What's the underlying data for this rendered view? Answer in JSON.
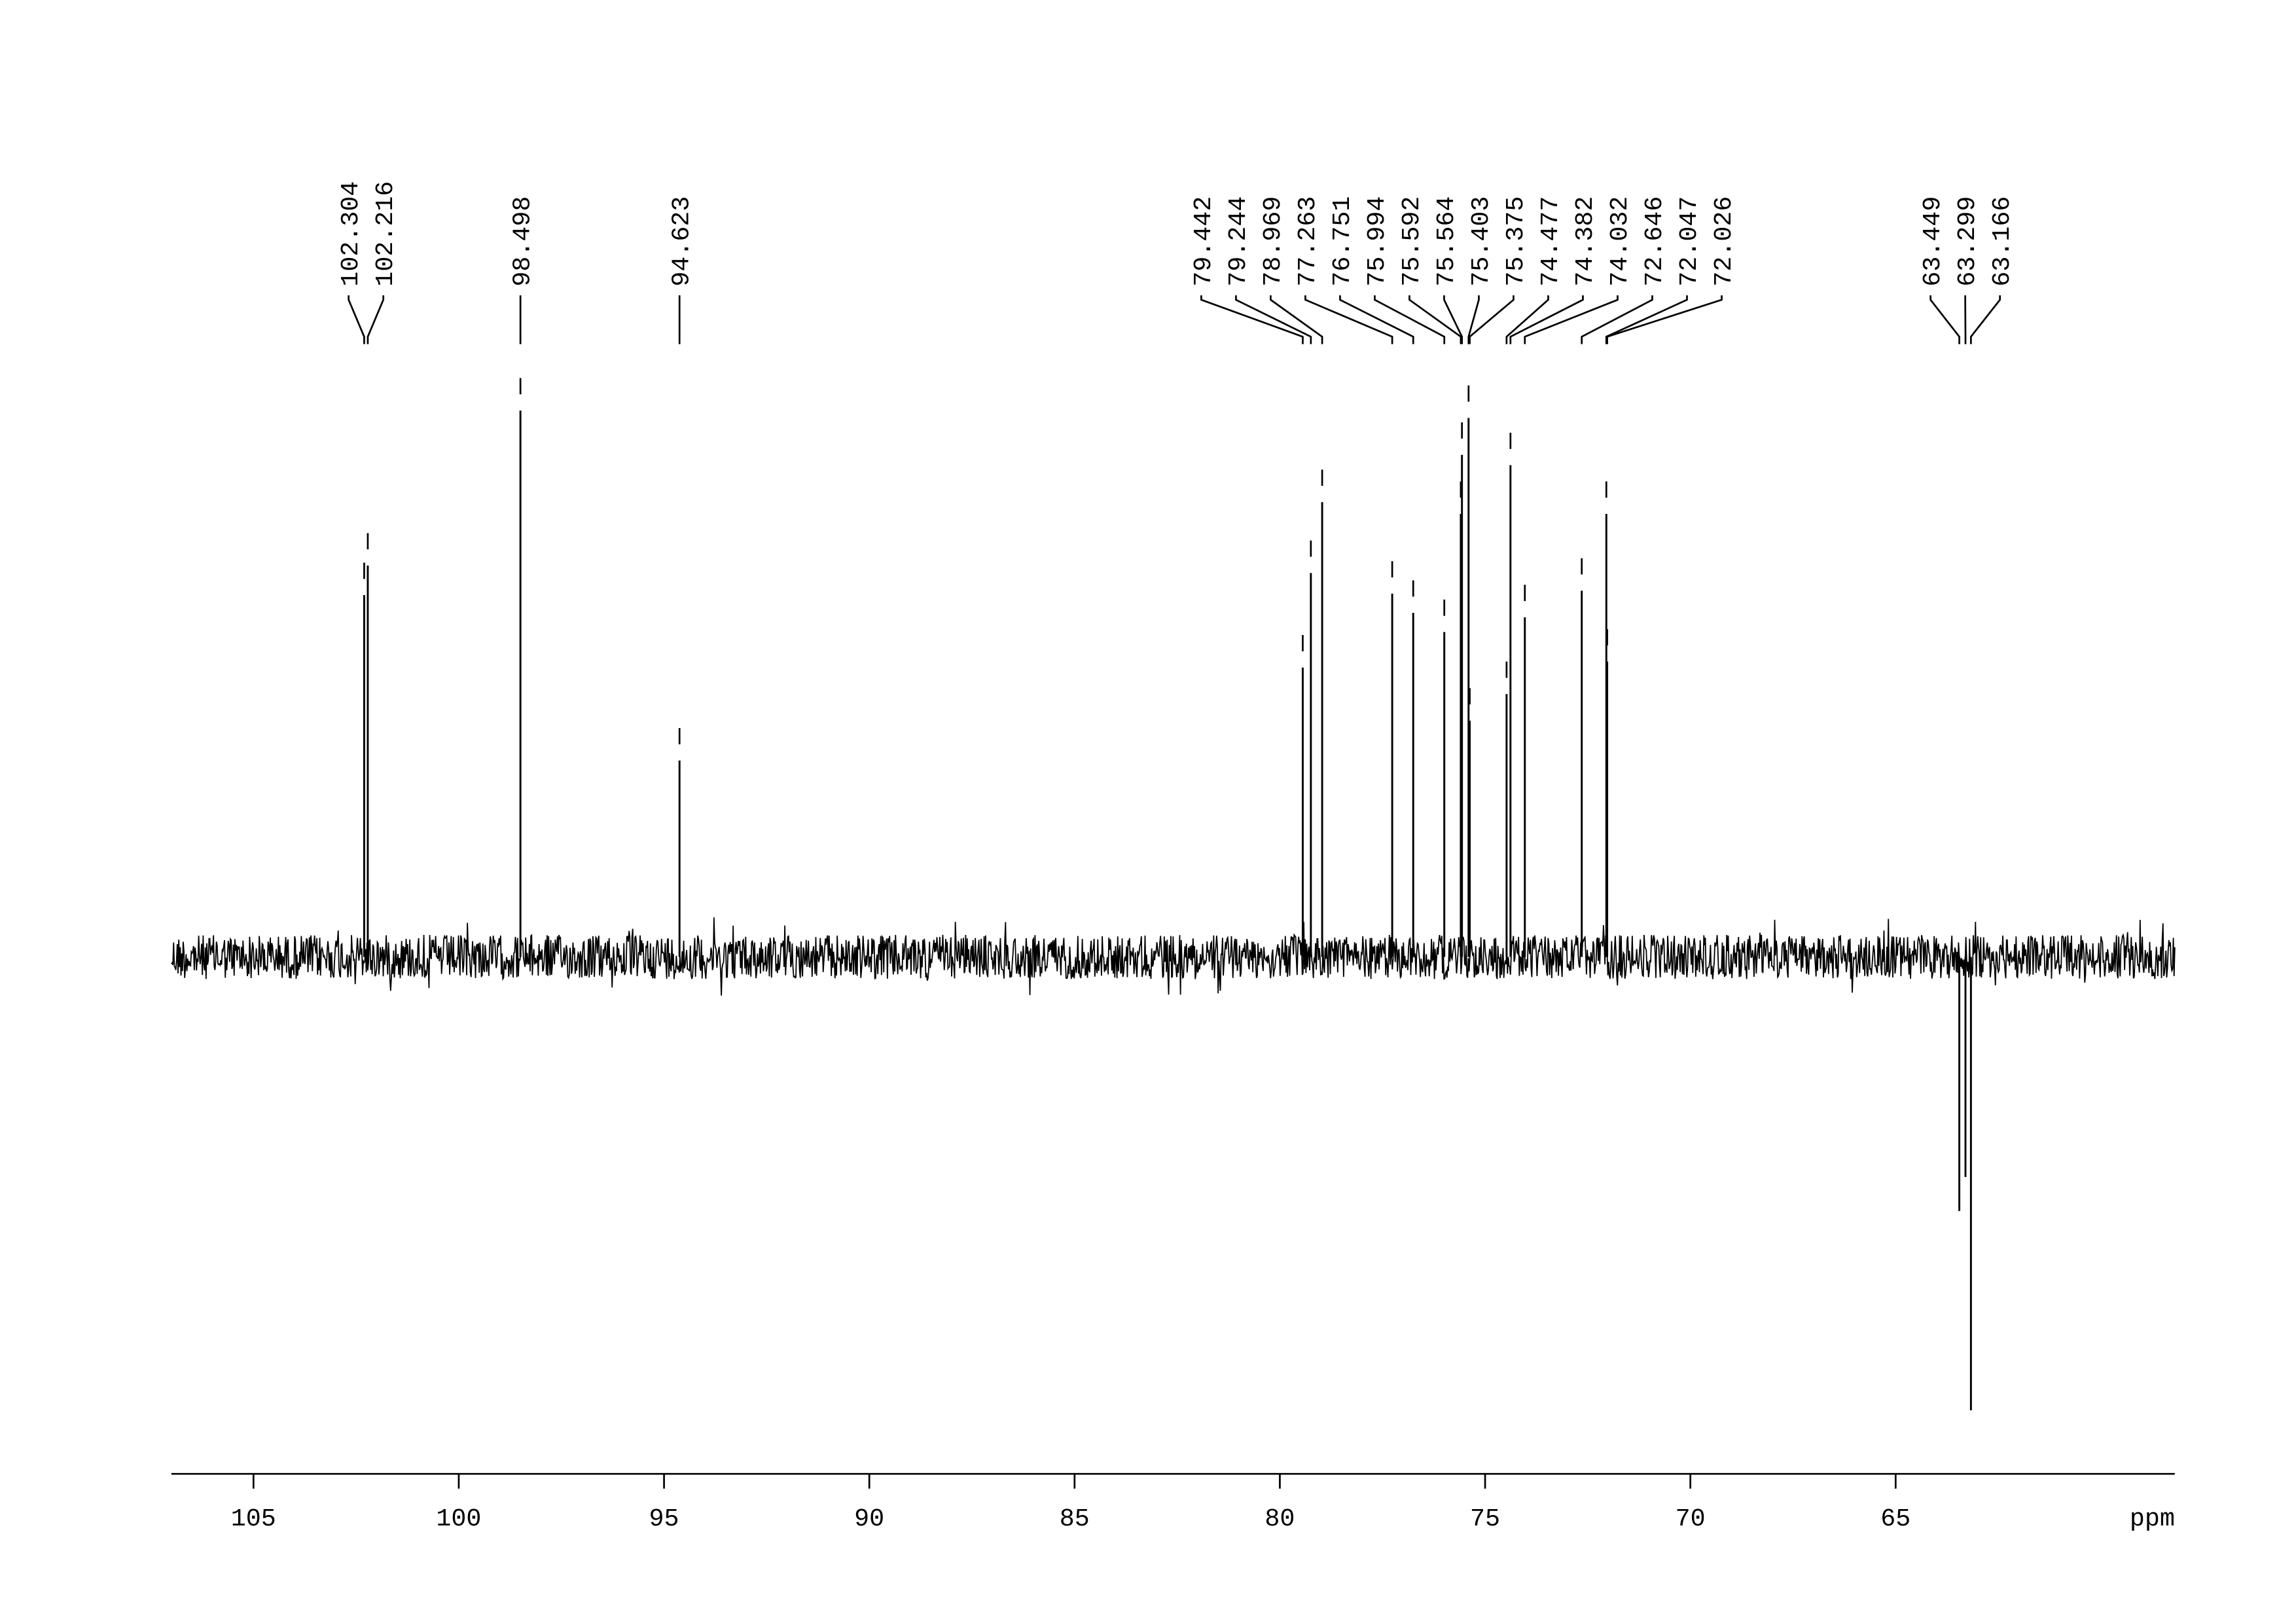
{
  "chart_data": {
    "type": "nmr",
    "xlabel": "ppm",
    "x": [
      102.304,
      102.216,
      98.498,
      94.623,
      79.442,
      79.244,
      78.969,
      77.263,
      76.751,
      75.994,
      75.592,
      75.564,
      75.403,
      75.375,
      74.477,
      74.382,
      74.032,
      72.646,
      72.047,
      72.026,
      63.449,
      63.299,
      63.166
    ],
    "values": [
      245,
      265,
      370,
      133,
      196,
      260,
      308,
      246,
      233,
      220,
      300,
      340,
      365,
      160,
      178,
      333,
      230,
      248,
      300,
      200,
      -172,
      -149,
      -307
    ],
    "xlim": [
      107,
      58.2
    ],
    "ylim": [
      -350,
      400
    ],
    "xticks": [
      105,
      100,
      95,
      90,
      85,
      80,
      75,
      70,
      65
    ],
    "color": "#000000"
  }
}
